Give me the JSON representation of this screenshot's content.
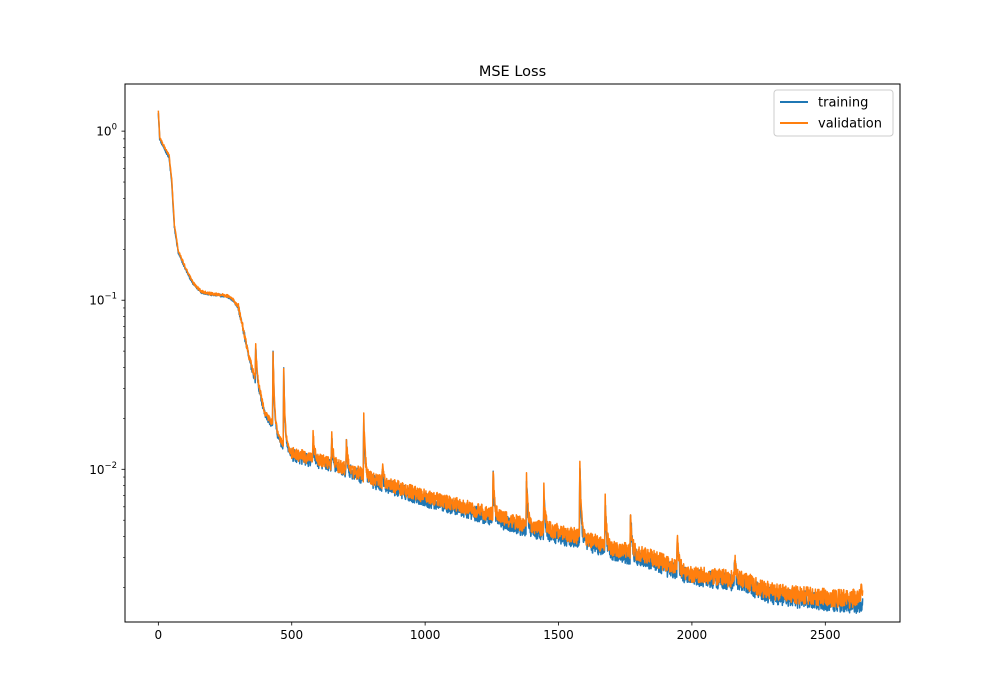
{
  "chart_data": {
    "type": "line",
    "title": "MSE Loss",
    "xlabel": "",
    "ylabel": "",
    "yscale": "log",
    "xlim": [
      -125,
      2780
    ],
    "ylim": [
      0.00125,
      1.9
    ],
    "xticks": [
      0,
      500,
      1000,
      1500,
      2000,
      2500
    ],
    "xtick_labels": [
      "0",
      "500",
      "1000",
      "1500",
      "2000",
      "2500"
    ],
    "ytick_exponents": [
      0,
      -1,
      -2
    ],
    "ytick_labels": [
      {
        "base": "10",
        "exp": "0"
      },
      {
        "base": "10",
        "exp": "−1"
      },
      {
        "base": "10",
        "exp": "−2"
      }
    ],
    "grid": false,
    "legend_position": "upper-right",
    "series": [
      {
        "name": "training",
        "color": "#1f77b4",
        "x": [
          0,
          5,
          20,
          40,
          50,
          60,
          75,
          100,
          130,
          160,
          200,
          230,
          260,
          280,
          300,
          320,
          340,
          360,
          380,
          400,
          430,
          450,
          470,
          500,
          550,
          600,
          650,
          700,
          750,
          800,
          900,
          1000,
          1100,
          1200,
          1300,
          1400,
          1500,
          1600,
          1700,
          1800,
          1900,
          2000,
          2100,
          2200,
          2250,
          2300,
          2400,
          2500,
          2600,
          2640
        ],
        "y": [
          1.3,
          0.9,
          0.8,
          0.7,
          0.5,
          0.27,
          0.19,
          0.155,
          0.125,
          0.112,
          0.108,
          0.107,
          0.105,
          0.1,
          0.09,
          0.065,
          0.045,
          0.035,
          0.028,
          0.021,
          0.018,
          0.015,
          0.0135,
          0.0122,
          0.0115,
          0.011,
          0.0105,
          0.0098,
          0.0092,
          0.0085,
          0.0075,
          0.0066,
          0.006,
          0.0054,
          0.0048,
          0.0043,
          0.004,
          0.0037,
          0.0032,
          0.003,
          0.0026,
          0.0023,
          0.0022,
          0.0021,
          0.0019,
          0.0018,
          0.0017,
          0.00165,
          0.0016,
          0.00155
        ],
        "spikes": [
          {
            "x": 365,
            "y": 0.054
          },
          {
            "x": 430,
            "y": 0.05
          },
          {
            "x": 470,
            "y": 0.038
          },
          {
            "x": 580,
            "y": 0.015
          },
          {
            "x": 650,
            "y": 0.015
          },
          {
            "x": 705,
            "y": 0.014
          },
          {
            "x": 770,
            "y": 0.02
          },
          {
            "x": 840,
            "y": 0.01
          },
          {
            "x": 1255,
            "y": 0.0095
          },
          {
            "x": 1380,
            "y": 0.0092
          },
          {
            "x": 1445,
            "y": 0.0072
          },
          {
            "x": 1580,
            "y": 0.011
          },
          {
            "x": 1675,
            "y": 0.0065
          },
          {
            "x": 1770,
            "y": 0.0058
          },
          {
            "x": 1945,
            "y": 0.004
          },
          {
            "x": 2160,
            "y": 0.003
          }
        ]
      },
      {
        "name": "validation",
        "color": "#ff7f0e",
        "x": [
          0,
          5,
          20,
          40,
          50,
          60,
          75,
          100,
          130,
          160,
          200,
          230,
          260,
          280,
          300,
          320,
          340,
          360,
          380,
          400,
          430,
          450,
          470,
          500,
          550,
          600,
          650,
          700,
          750,
          800,
          900,
          1000,
          1100,
          1200,
          1300,
          1400,
          1500,
          1600,
          1700,
          1800,
          1900,
          2000,
          2100,
          2200,
          2250,
          2300,
          2400,
          2500,
          2600,
          2640
        ],
        "y": [
          1.32,
          0.92,
          0.82,
          0.72,
          0.52,
          0.28,
          0.195,
          0.158,
          0.127,
          0.113,
          0.109,
          0.108,
          0.106,
          0.101,
          0.091,
          0.066,
          0.046,
          0.036,
          0.029,
          0.0215,
          0.0185,
          0.0155,
          0.014,
          0.0125,
          0.0118,
          0.0113,
          0.0108,
          0.0101,
          0.0095,
          0.0088,
          0.0078,
          0.0069,
          0.0063,
          0.0057,
          0.0051,
          0.0046,
          0.0043,
          0.0039,
          0.0034,
          0.0032,
          0.0028,
          0.0024,
          0.0023,
          0.0022,
          0.002,
          0.0019,
          0.0018,
          0.00175,
          0.0017,
          0.0019
        ],
        "spikes": [
          {
            "x": 365,
            "y": 0.055
          },
          {
            "x": 430,
            "y": 0.051
          },
          {
            "x": 470,
            "y": 0.039
          },
          {
            "x": 580,
            "y": 0.016
          },
          {
            "x": 650,
            "y": 0.016
          },
          {
            "x": 705,
            "y": 0.0145
          },
          {
            "x": 770,
            "y": 0.021
          },
          {
            "x": 840,
            "y": 0.0105
          },
          {
            "x": 1255,
            "y": 0.0098
          },
          {
            "x": 1380,
            "y": 0.0095
          },
          {
            "x": 1445,
            "y": 0.0075
          },
          {
            "x": 1580,
            "y": 0.0115
          },
          {
            "x": 1675,
            "y": 0.0068
          },
          {
            "x": 1770,
            "y": 0.006
          },
          {
            "x": 1945,
            "y": 0.0042
          },
          {
            "x": 2160,
            "y": 0.0031
          }
        ]
      }
    ]
  }
}
